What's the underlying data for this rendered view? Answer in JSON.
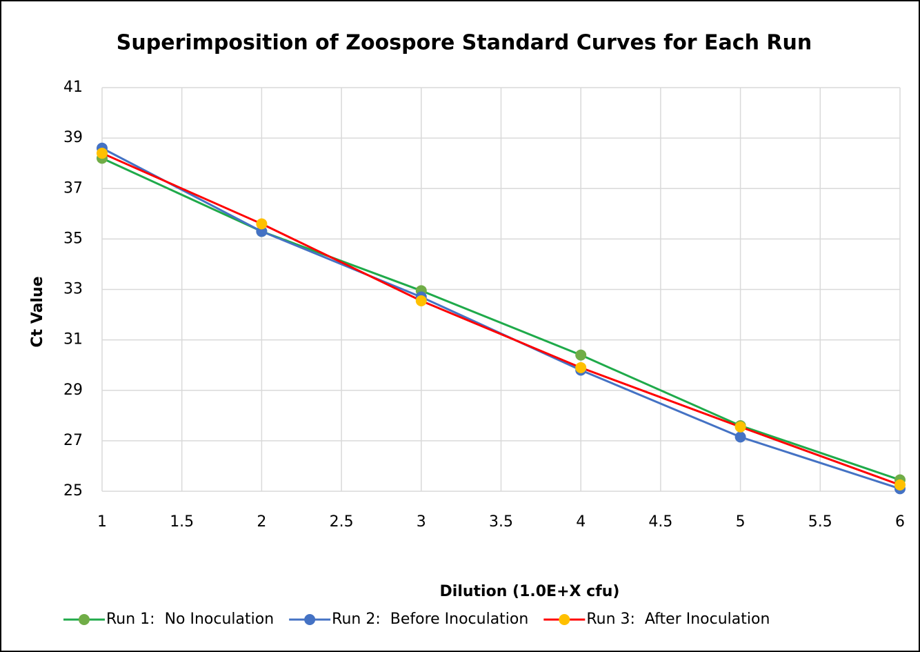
{
  "chart_data": {
    "type": "line",
    "title": "Superimposition of Zoospore Standard Curves for Each Run",
    "x_label": "Dilution (1.0E+X cfu)",
    "y_label": "Ct Value",
    "x": [
      1,
      2,
      3,
      4,
      5,
      6
    ],
    "series": [
      {
        "name": "Run 1:  No Inoculation",
        "color": "#1faa4a",
        "marker_color": "#70ad47",
        "values": [
          38.2,
          35.3,
          32.95,
          30.4,
          27.6,
          25.45
        ]
      },
      {
        "name": "Run 2:  Before Inoculation",
        "color": "#4472c4",
        "marker_color": "#4472c4",
        "values": [
          38.6,
          35.3,
          32.7,
          29.8,
          27.15,
          25.1
        ]
      },
      {
        "name": "Run 3:  After Inoculation",
        "color": "#ff0000",
        "marker_color": "#ffc000",
        "values": [
          38.4,
          35.6,
          32.55,
          29.9,
          27.55,
          25.25
        ]
      }
    ],
    "xlim": [
      1,
      6
    ],
    "xticks": [
      1,
      1.5,
      2,
      2.5,
      3,
      3.5,
      4,
      4.5,
      5,
      5.5,
      6
    ],
    "ylim": [
      25,
      41
    ],
    "yticks": [
      25,
      27,
      29,
      31,
      33,
      35,
      37,
      39,
      41
    ],
    "grid": true,
    "legend": "bottom"
  }
}
